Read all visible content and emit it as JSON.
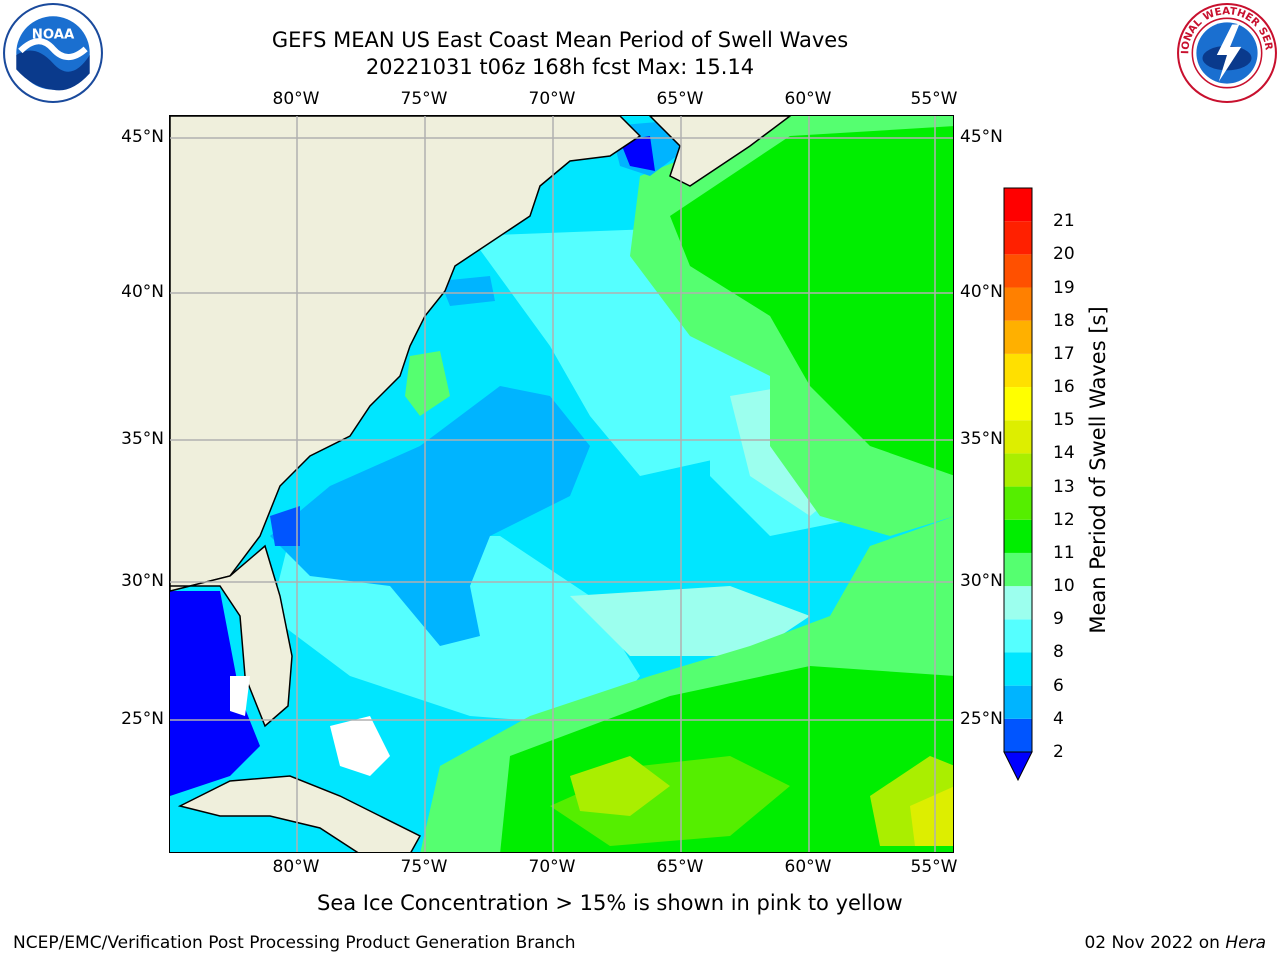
{
  "title": {
    "line1": "GEFS MEAN US East Coast Mean Period of Swell Waves",
    "line2": "20221031 t06z 168h fcst   Max: 15.14"
  },
  "logos": {
    "left": {
      "icon": "noaa-logo-icon",
      "text": "NOAA"
    },
    "right": {
      "icon": "nws-logo-icon",
      "text": "NATIONAL WEATHER SERVICE"
    }
  },
  "map": {
    "lon_ticks": [
      "80°W",
      "75°W",
      "70°W",
      "65°W",
      "60°W",
      "55°W"
    ],
    "lat_ticks": [
      "45°N",
      "40°N",
      "35°N",
      "30°N",
      "25°N"
    ],
    "colors": {
      "land": "#efefdc",
      "coast": "#000000",
      "grid": "#b0b0b0",
      "missing": "#ffffff"
    }
  },
  "colorbar": {
    "label": "Mean Period of Swell Waves [s]",
    "tick_labels": [
      "2",
      "4",
      "6",
      "8",
      "9",
      "10",
      "11",
      "12",
      "13",
      "14",
      "15",
      "16",
      "17",
      "18",
      "19",
      "20",
      "21"
    ],
    "bins": [
      {
        "lower": 2,
        "upper": 4,
        "color": "#0055ff"
      },
      {
        "lower": 4,
        "upper": 6,
        "color": "#00b4ff"
      },
      {
        "lower": 6,
        "upper": 8,
        "color": "#00e6ff"
      },
      {
        "lower": 8,
        "upper": 9,
        "color": "#55ffff"
      },
      {
        "lower": 9,
        "upper": 10,
        "color": "#9cffee"
      },
      {
        "lower": 10,
        "upper": 11,
        "color": "#55ff70"
      },
      {
        "lower": 11,
        "upper": 12,
        "color": "#00ee00"
      },
      {
        "lower": 12,
        "upper": 13,
        "color": "#55ee00"
      },
      {
        "lower": 13,
        "upper": 14,
        "color": "#aaee00"
      },
      {
        "lower": 14,
        "upper": 15,
        "color": "#ddee00"
      },
      {
        "lower": 15,
        "upper": 16,
        "color": "#ffff00"
      },
      {
        "lower": 16,
        "upper": 17,
        "color": "#ffe000"
      },
      {
        "lower": 17,
        "upper": 18,
        "color": "#ffb000"
      },
      {
        "lower": 18,
        "upper": 19,
        "color": "#ff8000"
      },
      {
        "lower": 19,
        "upper": 20,
        "color": "#ff5000"
      },
      {
        "lower": 20,
        "upper": 21,
        "color": "#ff2000"
      },
      {
        "lower": 21,
        "upper": 22,
        "color": "#ff0000"
      }
    ],
    "under_color": "#0000ff"
  },
  "caption": "Sea Ice Concentration > 15% is shown in pink to yellow",
  "footer": {
    "left": "NCEP/EMC/Verification Post Processing Product Generation Branch",
    "date": "02 Nov 2022 on ",
    "machine": "Hera"
  }
}
